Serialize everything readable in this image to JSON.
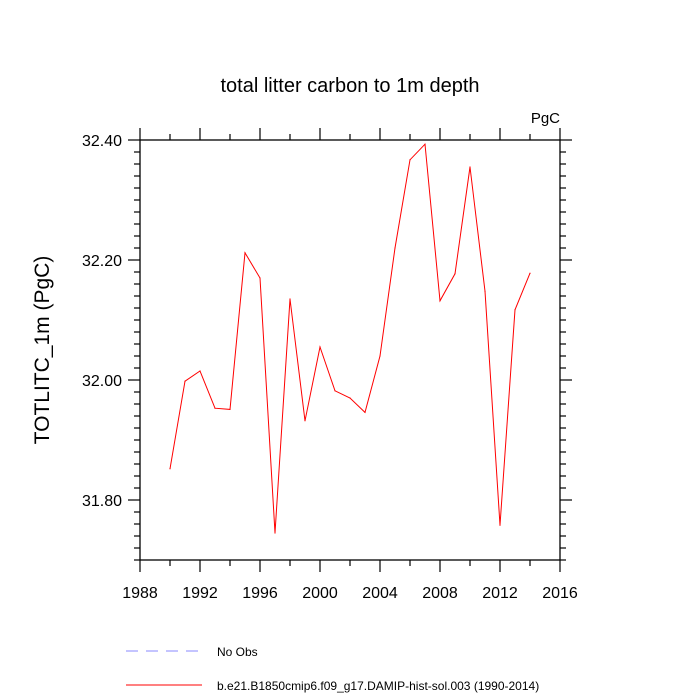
{
  "chart_data": {
    "type": "line",
    "title": "total litter carbon to 1m depth",
    "units_label": "PgC",
    "xlabel": "",
    "ylabel": "TOTLITC_1m  (PgC)",
    "xlim": [
      1988,
      2016
    ],
    "ylim": [
      31.7,
      32.4
    ],
    "x_ticks": [
      1988,
      1992,
      1996,
      2000,
      2004,
      2008,
      2012,
      2016
    ],
    "x_minor_ticks": [
      1990,
      1994,
      1998,
      2002,
      2006,
      2010,
      2014
    ],
    "y_ticks": [
      31.8,
      32.0,
      32.2,
      32.4
    ],
    "y_minor_ticks": [
      31.7,
      31.72,
      31.74,
      31.76,
      31.78,
      31.82,
      31.84,
      31.86,
      31.88,
      31.9,
      31.92,
      31.94,
      31.96,
      31.98,
      32.02,
      32.04,
      32.06,
      32.08,
      32.1,
      32.12,
      32.14,
      32.16,
      32.18,
      32.22,
      32.24,
      32.26,
      32.28,
      32.3,
      32.32,
      32.34,
      32.36,
      32.38
    ],
    "x_tick_labels": [
      "1988",
      "1992",
      "1996",
      "2000",
      "2004",
      "2008",
      "2012",
      "2016"
    ],
    "y_tick_labels": [
      "31.80",
      "32.00",
      "32.20",
      "32.40"
    ],
    "grid": false,
    "legend_placement": "bottom",
    "series": [
      {
        "name": "b.e21.B1850cmip6.f09_g17.DAMIP-hist-sol.003 (1990-2014)",
        "color": "#ff0000",
        "dash": "solid",
        "x": [
          1990,
          1991,
          1992,
          1993,
          1994,
          1995,
          1996,
          1997,
          1998,
          1999,
          2000,
          2001,
          2002,
          2003,
          2004,
          2005,
          2006,
          2007,
          2008,
          2009,
          2010,
          2011,
          2012,
          2013,
          2014
        ],
        "values": [
          31.852,
          31.998,
          32.015,
          31.953,
          31.951,
          32.212,
          32.17,
          31.745,
          32.135,
          31.932,
          32.055,
          31.982,
          31.97,
          31.946,
          32.04,
          32.22,
          32.367,
          32.393,
          32.132,
          32.177,
          32.355,
          32.148,
          31.758,
          32.117,
          32.178
        ]
      }
    ],
    "legend": [
      {
        "label": "No Obs",
        "color": "#8888ff",
        "dash": "dashed"
      },
      {
        "label": "b.e21.B1850cmip6.f09_g17.DAMIP-hist-sol.003 (1990-2014)",
        "color": "#ff0000",
        "dash": "solid"
      }
    ]
  }
}
